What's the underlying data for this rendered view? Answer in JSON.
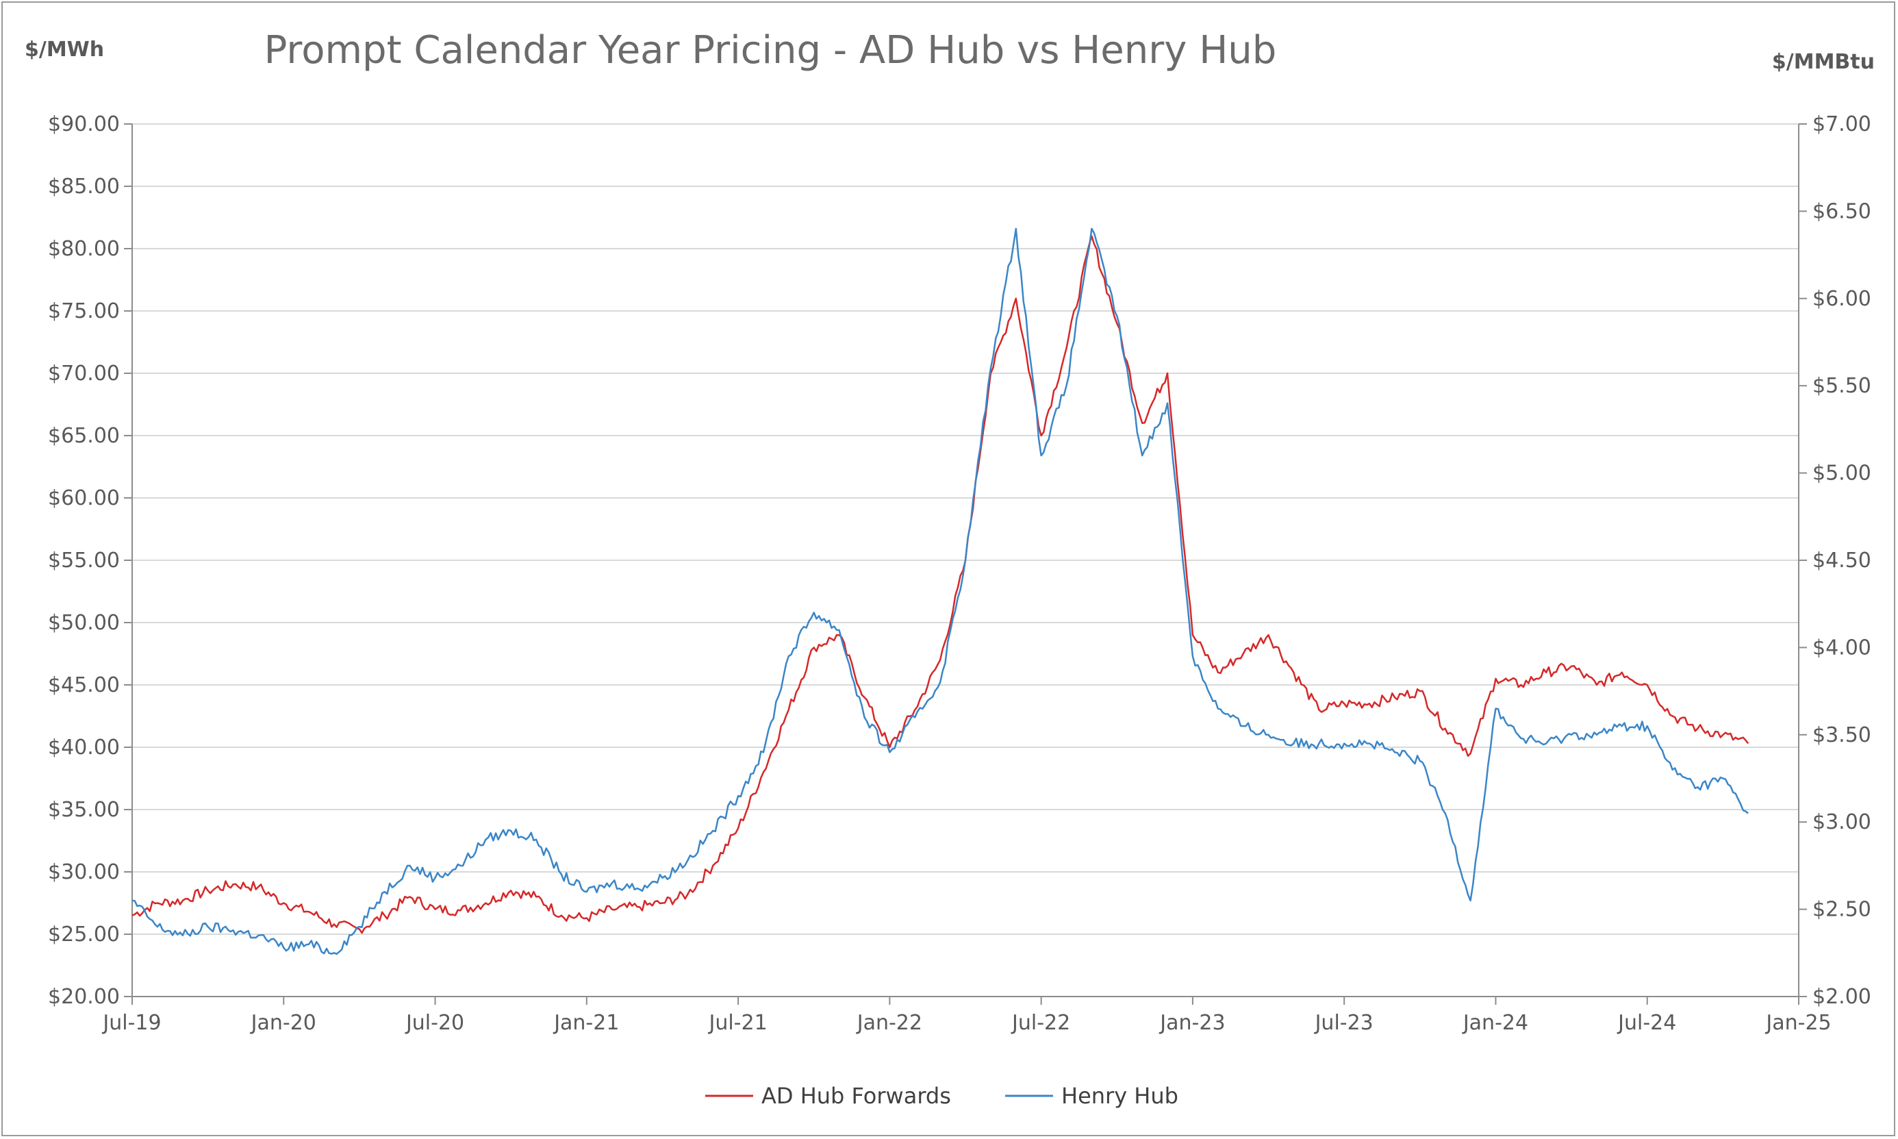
{
  "chart_data": {
    "type": "line",
    "title": "Prompt Calendar Year Pricing - AD Hub vs Henry Hub",
    "y_left_label": "$/MWh",
    "y_right_label": "$/MMBtu",
    "y_left_lim": [
      20,
      90
    ],
    "y_right_lim": [
      2,
      7
    ],
    "y_left_ticks": [
      "$20.00",
      "$25.00",
      "$30.00",
      "$35.00",
      "$40.00",
      "$45.00",
      "$50.00",
      "$55.00",
      "$60.00",
      "$65.00",
      "$70.00",
      "$75.00",
      "$80.00",
      "$85.00",
      "$90.00"
    ],
    "y_right_ticks": [
      "$2.00",
      "$2.50",
      "$3.00",
      "$3.50",
      "$4.00",
      "$4.50",
      "$5.00",
      "$5.50",
      "$6.00",
      "$6.50",
      "$7.00"
    ],
    "x_ticks": [
      "Jul-19",
      "Jan-20",
      "Jul-20",
      "Jan-21",
      "Jul-21",
      "Jan-22",
      "Jul-22",
      "Jan-23",
      "Jul-23",
      "Jan-24",
      "Jul-24",
      "Jan-25"
    ],
    "x_range": [
      "Jul-19",
      "Jan-25"
    ],
    "grid": true,
    "legend_position": "bottom",
    "series": [
      {
        "name": "AD Hub Forwards",
        "axis": "left",
        "color": "#d62828",
        "points": [
          [
            "Jul-19",
            26.5
          ],
          [
            "Aug-19",
            27.5
          ],
          [
            "Sep-19",
            27.7
          ],
          [
            "Oct-19",
            28.5
          ],
          [
            "Nov-19",
            29.0
          ],
          [
            "Dec-19",
            28.8
          ],
          [
            "Jan-20",
            27.5
          ],
          [
            "Feb-20",
            26.8
          ],
          [
            "Mar-20",
            25.8
          ],
          [
            "Apr-20",
            25.4
          ],
          [
            "May-20",
            26.5
          ],
          [
            "Jun-20",
            28.0
          ],
          [
            "Jul-20",
            27.0
          ],
          [
            "Aug-20",
            26.9
          ],
          [
            "Sep-20",
            27.5
          ],
          [
            "Oct-20",
            28.5
          ],
          [
            "Nov-20",
            28.0
          ],
          [
            "Dec-20",
            26.5
          ],
          [
            "Jan-21",
            26.3
          ],
          [
            "Feb-21",
            27.0
          ],
          [
            "Mar-21",
            27.2
          ],
          [
            "Apr-21",
            27.5
          ],
          [
            "May-21",
            28.2
          ],
          [
            "Jun-21",
            30.5
          ],
          [
            "Jul-21",
            33.5
          ],
          [
            "Aug-21",
            38.0
          ],
          [
            "Sep-21",
            43.0
          ],
          [
            "Oct-21",
            48.0
          ],
          [
            "Nov-21",
            49.0
          ],
          [
            "Dec-21",
            44.0
          ],
          [
            "Jan-22",
            40.0
          ],
          [
            "Feb-22",
            43.0
          ],
          [
            "Mar-22",
            47.0
          ],
          [
            "Apr-22",
            55.0
          ],
          [
            "May-22",
            70.0
          ],
          [
            "Jun-22",
            76.0
          ],
          [
            "Jul-22",
            65.0
          ],
          [
            "Aug-22",
            72.0
          ],
          [
            "Sep-22",
            81.0
          ],
          [
            "Oct-22",
            74.0
          ],
          [
            "Nov-22",
            66.0
          ],
          [
            "Dec-22",
            70.0
          ],
          [
            "Jan-23",
            49.0
          ],
          [
            "Feb-23",
            46.0
          ],
          [
            "Mar-23",
            47.5
          ],
          [
            "Apr-23",
            49.0
          ],
          [
            "May-23",
            46.0
          ],
          [
            "Jun-23",
            43.0
          ],
          [
            "Jul-23",
            43.5
          ],
          [
            "Aug-23",
            43.5
          ],
          [
            "Sep-23",
            44.0
          ],
          [
            "Oct-23",
            44.5
          ],
          [
            "Nov-23",
            41.5
          ],
          [
            "Dec-23",
            39.5
          ],
          [
            "Jan-24",
            45.5
          ],
          [
            "Feb-24",
            45.0
          ],
          [
            "Mar-24",
            46.0
          ],
          [
            "Apr-24",
            46.5
          ],
          [
            "May-24",
            45.0
          ],
          [
            "Jun-24",
            46.0
          ],
          [
            "Jul-24",
            45.0
          ],
          [
            "Aug-24",
            42.5
          ],
          [
            "Sep-24",
            41.5
          ],
          [
            "Oct-24",
            41.0
          ],
          [
            "Nov-24",
            40.3
          ]
        ]
      },
      {
        "name": "Henry Hub",
        "axis": "right",
        "color": "#3a86c8",
        "points": [
          [
            "Jul-19",
            2.55
          ],
          [
            "Aug-19",
            2.4
          ],
          [
            "Sep-19",
            2.35
          ],
          [
            "Oct-19",
            2.4
          ],
          [
            "Nov-19",
            2.38
          ],
          [
            "Dec-19",
            2.35
          ],
          [
            "Jan-20",
            2.28
          ],
          [
            "Feb-20",
            2.3
          ],
          [
            "Mar-20",
            2.25
          ],
          [
            "Apr-20",
            2.4
          ],
          [
            "May-20",
            2.6
          ],
          [
            "Jun-20",
            2.75
          ],
          [
            "Jul-20",
            2.68
          ],
          [
            "Aug-20",
            2.75
          ],
          [
            "Sep-20",
            2.9
          ],
          [
            "Oct-20",
            2.95
          ],
          [
            "Nov-20",
            2.9
          ],
          [
            "Dec-20",
            2.7
          ],
          [
            "Jan-21",
            2.6
          ],
          [
            "Feb-21",
            2.65
          ],
          [
            "Mar-21",
            2.62
          ],
          [
            "Apr-21",
            2.68
          ],
          [
            "May-21",
            2.78
          ],
          [
            "Jun-21",
            2.95
          ],
          [
            "Jul-21",
            3.15
          ],
          [
            "Aug-21",
            3.4
          ],
          [
            "Sep-21",
            3.95
          ],
          [
            "Oct-21",
            4.2
          ],
          [
            "Nov-21",
            4.1
          ],
          [
            "Dec-21",
            3.6
          ],
          [
            "Jan-22",
            3.4
          ],
          [
            "Feb-22",
            3.6
          ],
          [
            "Mar-22",
            3.8
          ],
          [
            "Apr-22",
            4.5
          ],
          [
            "May-22",
            5.6
          ],
          [
            "Jun-22",
            6.4
          ],
          [
            "Jul-22",
            5.1
          ],
          [
            "Aug-22",
            5.5
          ],
          [
            "Sep-22",
            6.4
          ],
          [
            "Oct-22",
            5.9
          ],
          [
            "Nov-22",
            5.1
          ],
          [
            "Dec-22",
            5.4
          ],
          [
            "Jan-23",
            3.95
          ],
          [
            "Feb-23",
            3.65
          ],
          [
            "Mar-23",
            3.55
          ],
          [
            "Apr-23",
            3.5
          ],
          [
            "May-23",
            3.45
          ],
          [
            "Jun-23",
            3.45
          ],
          [
            "Jul-23",
            3.45
          ],
          [
            "Aug-23",
            3.45
          ],
          [
            "Sep-23",
            3.4
          ],
          [
            "Oct-23",
            3.35
          ],
          [
            "Nov-23",
            3.05
          ],
          [
            "Dec-23",
            2.55
          ],
          [
            "Jan-24",
            3.65
          ],
          [
            "Feb-24",
            3.48
          ],
          [
            "Mar-24",
            3.45
          ],
          [
            "Apr-24",
            3.5
          ],
          [
            "May-24",
            3.5
          ],
          [
            "Jun-24",
            3.55
          ],
          [
            "Jul-24",
            3.55
          ],
          [
            "Aug-24",
            3.3
          ],
          [
            "Sep-24",
            3.2
          ],
          [
            "Oct-24",
            3.25
          ],
          [
            "Nov-24",
            3.05
          ]
        ]
      }
    ]
  }
}
